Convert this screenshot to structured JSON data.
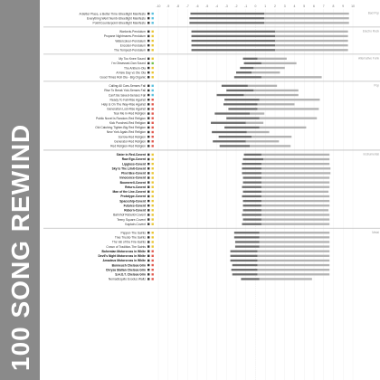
{
  "page_title": "100 SONG REWIND",
  "colors": {
    "title_band": "#8a8a8a",
    "bar_dark": "#6e6e6e",
    "bar_light": "#b3b3b3",
    "sep": "#bdbdbd"
  },
  "chart_data": {
    "type": "bar",
    "orientation": "horizontal",
    "x_ticks": [
      "-10",
      "-9",
      "-8",
      "-7",
      "-6",
      "-5",
      "-4",
      "-3",
      "-2",
      "-1",
      "0",
      "1",
      "2",
      "3",
      "4",
      "5",
      "6",
      "7",
      "8",
      "9",
      "10"
    ],
    "xlim": [
      -10,
      10
    ],
    "series": [
      {
        "values_from": "groups.songs.start/end"
      }
    ],
    "groups": [
      {
        "label": "Bad Pop",
        "songs": [
          {
            "name": "A Better Place, a Better Time-Streetlight Manifesto",
            "bold": false,
            "c1": "#3b3b3b",
            "c2": "#5bc0de",
            "start": -6.7,
            "end": 9.6,
            "split": 0.9
          },
          {
            "name": "Everything Went Numb-Streetlight Manifesto",
            "bold": false,
            "c1": "#3b3b3b",
            "c2": "#5bc0de",
            "start": -6.8,
            "end": 9.6,
            "split": 0.9
          },
          {
            "name": "Point/Counterpoint-Streetlight Manifesto",
            "bold": false,
            "c1": "#3b3b3b",
            "c2": "#5bc0de",
            "start": -6.8,
            "end": 9.6,
            "split": 0.9
          }
        ]
      },
      {
        "label": "Electro Rock",
        "songs": [
          {
            "name": "Warlords-Pendulum",
            "bold": false,
            "c1": "#3b3b3b",
            "c2": "#e8c534",
            "start": -6.6,
            "end": 9.5,
            "split": 2.0
          },
          {
            "name": "Propane Nightmares-Pendulum",
            "bold": false,
            "c1": "#3b3b3b",
            "c2": "#e8c534",
            "start": -6.6,
            "end": 9.5,
            "split": 2.0
          },
          {
            "name": "Watercolour-Pendulum",
            "bold": false,
            "c1": "#3b3b3b",
            "c2": "#e8c534",
            "start": -6.6,
            "end": 9.5,
            "split": 2.0
          },
          {
            "name": "Encoder-Pendulum",
            "bold": false,
            "c1": "#3b3b3b",
            "c2": "#e8c534",
            "start": -6.6,
            "end": 9.5,
            "split": 2.0
          },
          {
            "name": "The Tempest-Pendulum",
            "bold": false,
            "c1": "#3b3b3b",
            "c2": "#e8c534",
            "start": -6.6,
            "end": 9.5,
            "split": 2.0
          }
        ]
      },
      {
        "label": "Alternative Funk",
        "songs": [
          {
            "name": "My Too Knee Sound",
            "bold": false,
            "c1": "#3b3b3b",
            "c2": "#e8c534",
            "start": -1.3,
            "end": 3.2,
            "split": 0.2
          },
          {
            "name": "I'm Obsessed-Dan Sound",
            "bold": false,
            "c1": "#3b3b3b",
            "c2": "#6fbf4a",
            "start": -1.2,
            "end": 4.2,
            "split": 0.6
          },
          {
            "name": "The Anthem-Ola",
            "bold": false,
            "c1": "#3b3b3b",
            "c2": "#e8c534",
            "start": -1.6,
            "end": 3.0,
            "split": -0.2
          },
          {
            "name": "A New Day vs Ole Ola",
            "bold": false,
            "c1": "#3b3b3b",
            "c2": "#e8c534",
            "start": -2.0,
            "end": 2.5,
            "split": -0.4
          },
          {
            "name": "Good Times Roll Ola - Big Organic",
            "bold": false,
            "c1": "#3b3b3b",
            "c2": "#e8c534",
            "start": -2.2,
            "end": 6.8,
            "split": 0.6
          }
        ]
      },
      {
        "label": "Pop",
        "songs": [
          {
            "name": "Calling All Cars-Senses Fail",
            "bold": false,
            "c1": "#3b3b3b",
            "c2": "#5bc0de",
            "start": -3.5,
            "end": 2.2,
            "split": -0.8
          },
          {
            "name": "Rise To Break Yoki-Senses Fail",
            "bold": false,
            "c1": "#3b3b3b",
            "c2": "#5bc0de",
            "start": -3.0,
            "end": 4.4,
            "split": -0.2
          },
          {
            "name": "Can't Be Saved-Senses Fail",
            "bold": false,
            "c1": "#3b3b3b",
            "c2": "#5bc0de",
            "start": -4.0,
            "end": 4.4,
            "split": -1.2
          },
          {
            "name": "Ready To Fall-Rise Against",
            "bold": false,
            "c1": "#3b3b3b",
            "c2": "#e05a4f",
            "start": -3.2,
            "end": 6.6,
            "split": 0.4
          },
          {
            "name": "Help is On The Way-Rise Against",
            "bold": false,
            "c1": "#3b3b3b",
            "c2": "#e05a4f",
            "start": -3.3,
            "end": 4.0,
            "split": 0.2
          },
          {
            "name": "Generation Lost-Rise Against",
            "bold": false,
            "c1": "#3b3b3b",
            "c2": "#e05a4f",
            "start": -2.8,
            "end": 6.5,
            "split": 0.2
          },
          {
            "name": "Tear Me In-Red Religion",
            "bold": false,
            "c1": "#3b3b3b",
            "c2": "#e05a4f",
            "start": -4.2,
            "end": 0.9,
            "split": -0.6
          },
          {
            "name": "Public Novel is Random-Red Religion",
            "bold": false,
            "c1": "#3b3b3b",
            "c2": "#e05a4f",
            "start": -3.0,
            "end": 6.3,
            "split": 0.4
          },
          {
            "name": "Kick Punched-Red Religion",
            "bold": false,
            "c1": "#3b3b3b",
            "c2": "#e05a4f",
            "start": -4.6,
            "end": 0.8,
            "split": -1.0
          },
          {
            "name": "Old Catching Tighter-Big Red Religion",
            "bold": false,
            "c1": "#3b3b3b",
            "c2": "#e05a4f",
            "start": -3.2,
            "end": 5.2,
            "split": 0.4
          },
          {
            "name": "New York Again-Red Religion",
            "bold": false,
            "c1": "#3b3b3b",
            "c2": "#e05a4f",
            "start": -4.5,
            "end": 1.4,
            "split": -0.9
          },
          {
            "name": "Sorrow-Red Religion",
            "bold": false,
            "c1": "#3b3b3b",
            "c2": "#e05a4f",
            "start": -3.8,
            "end": 3.7,
            "split": -0.4
          },
          {
            "name": "Generator-Red Religion",
            "bold": false,
            "c1": "#3b3b3b",
            "c2": "#e05a4f",
            "start": -4.4,
            "end": 2.4,
            "split": -1.0
          },
          {
            "name": "Red Religion-Red Religion",
            "bold": false,
            "c1": "#3b3b3b",
            "c2": "#e05a4f",
            "start": -3.7,
            "end": 3.6,
            "split": -0.6
          }
        ]
      },
      {
        "label": "Instrumental",
        "songs": [
          {
            "name": "Sister in Red-Covent",
            "bold": true,
            "c1": "#3b3b3b",
            "c2": "#e8c534",
            "start": -1.2,
            "end": 7.6,
            "split": 0.6
          },
          {
            "name": "Raw Ego-Covent",
            "bold": true,
            "c1": "#3b3b3b",
            "c2": "#e8c534",
            "start": -1.3,
            "end": 7.6,
            "split": 0.8
          },
          {
            "name": "Lipgloss-Covent",
            "bold": true,
            "c1": "#3b3b3b",
            "c2": "#e8c534",
            "start": -1.4,
            "end": 7.6,
            "split": 0.6
          },
          {
            "name": "Sky Is The Limit-Covent",
            "bold": true,
            "c1": "#3b3b3b",
            "c2": "#e8c534",
            "start": -1.4,
            "end": 7.7,
            "split": 0.6
          },
          {
            "name": "Pixel Bee-Covent",
            "bold": true,
            "c1": "#3b3b3b",
            "c2": "#e8c534",
            "start": -1.4,
            "end": 7.7,
            "split": 0.6
          },
          {
            "name": "Innocence-Covent",
            "bold": true,
            "c1": "#3b3b3b",
            "c2": "#e8c534",
            "start": -1.3,
            "end": 7.6,
            "split": 0.6
          },
          {
            "name": "Boomerell-Covent",
            "bold": true,
            "c1": "#3b3b3b",
            "c2": "#e8c534",
            "start": -1.3,
            "end": 7.6,
            "split": 0.6
          },
          {
            "name": "Return-Covent",
            "bold": true,
            "c1": "#3b3b3b",
            "c2": "#e8c534",
            "start": -1.4,
            "end": 7.6,
            "split": 0.6
          },
          {
            "name": "Man of the Line-Covent",
            "bold": true,
            "c1": "#3b3b3b",
            "c2": "#e8c534",
            "start": -1.3,
            "end": 7.5,
            "split": 0.6
          },
          {
            "name": "Prototype-Covent",
            "bold": true,
            "c1": "#3b3b3b",
            "c2": "#e8c534",
            "start": -1.4,
            "end": 7.6,
            "split": 0.6
          },
          {
            "name": "Spaceship-Covent",
            "bold": true,
            "c1": "#3b3b3b",
            "c2": "#e8c534",
            "start": -1.3,
            "end": 7.6,
            "split": 0.6
          },
          {
            "name": "Futures-Covent",
            "bold": true,
            "c1": "#3b3b3b",
            "c2": "#e8c534",
            "start": -1.3,
            "end": 7.6,
            "split": 0.6
          },
          {
            "name": "Reborn-Covent",
            "bold": true,
            "c1": "#3b3b3b",
            "c2": "#e8c534",
            "start": -1.3,
            "end": 7.5,
            "split": 0.6
          },
          {
            "name": "Bahnhof Rebuild-Covent",
            "bold": false,
            "c1": "#3b3b3b",
            "c2": "#e8c534",
            "start": -1.4,
            "end": 7.6,
            "split": 0.6
          },
          {
            "name": "Teeny Square-Covent",
            "bold": false,
            "c1": "#3b3b3b",
            "c2": "#e8c534",
            "start": -1.3,
            "end": 7.6,
            "split": 0.6
          },
          {
            "name": "Kaptain-Covent",
            "bold": false,
            "c1": "#3b3b3b",
            "c2": "#e8c534",
            "start": -1.4,
            "end": 7.6,
            "split": 0.6
          }
        ]
      },
      {
        "label": "Metal",
        "songs": [
          {
            "name": "Pepper-The Saints",
            "bold": false,
            "c1": "#3b3b3b",
            "c2": "#e8c534",
            "start": -2.2,
            "end": 7.6,
            "split": 0.4
          },
          {
            "name": "Tree Trucks-The Saints",
            "bold": false,
            "c1": "#3b3b3b",
            "c2": "#e8c534",
            "start": -2.2,
            "end": 7.6,
            "split": 0.4
          },
          {
            "name": "The Val of the Fire-Saints",
            "bold": false,
            "c1": "#3b3b3b",
            "c2": "#e8c534",
            "start": -2.1,
            "end": 7.6,
            "split": 0.4
          },
          {
            "name": "Crown of Tradition-The Saints",
            "bold": false,
            "c1": "#3b3b3b",
            "c2": "#e8c534",
            "start": -2.1,
            "end": 7.6,
            "split": 0.4
          },
          {
            "name": "Bohemian Motorcross in White",
            "bold": true,
            "c1": "#3b3b3b",
            "c2": "#e05a4f",
            "start": -2.6,
            "end": 7.6,
            "split": 0.2
          },
          {
            "name": "Devil's Night Motorcross in White",
            "bold": true,
            "c1": "#3b3b3b",
            "c2": "#e05a4f",
            "start": -2.6,
            "end": 7.6,
            "split": 0.2
          },
          {
            "name": "Amadeus Motorcross in White",
            "bold": true,
            "c1": "#3b3b3b",
            "c2": "#e05a4f",
            "start": -2.6,
            "end": 7.6,
            "split": 0.2
          },
          {
            "name": "Bonneuch Chelsea Grin",
            "bold": true,
            "c1": "#3b3b3b",
            "c2": "#e05a4f",
            "start": -2.4,
            "end": 7.6,
            "split": 0.2
          },
          {
            "name": "Chrysa Stallan Chelsea Grin",
            "bold": true,
            "c1": "#3b3b3b",
            "c2": "#e05a4f",
            "start": -2.5,
            "end": 7.6,
            "split": 0.2
          },
          {
            "name": "S.H.O.T. Chelsea Grin",
            "bold": true,
            "c1": "#3b3b3b",
            "c2": "#e05a4f",
            "start": -2.4,
            "end": 7.6,
            "split": 0.2
          },
          {
            "name": "Nemadisquito Exodus Waltz",
            "bold": false,
            "c1": "#3b3b3b",
            "c2": "#e05a4f",
            "start": -1.5,
            "end": 5.8,
            "split": 0.4
          }
        ]
      }
    ]
  }
}
